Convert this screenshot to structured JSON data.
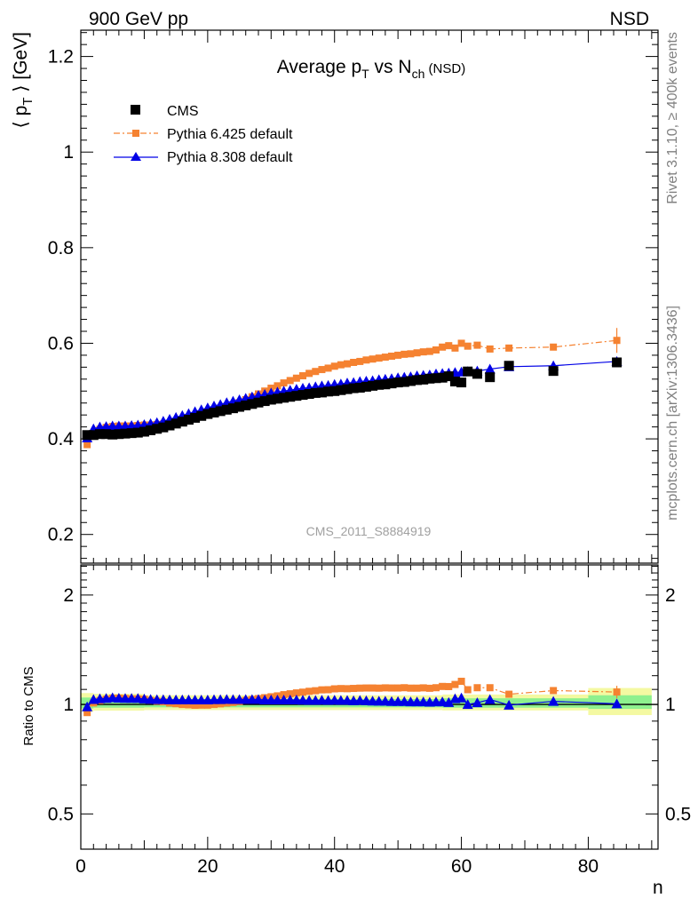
{
  "header": {
    "left": "900 GeV pp",
    "right": "NSD"
  },
  "side_text": {
    "top": "Rivet 3.1.10, ≥ 400k events",
    "bottom": "mcplots.cern.ch [arXiv:1306.3436]"
  },
  "colors": {
    "cms": "#000000",
    "pythia6": "#f58231",
    "pythia8": "#0000e6",
    "band_green": "#8ef08e",
    "band_yellow": "#f4f9a2"
  },
  "chart_data": [
    {
      "type": "scatter",
      "title": {
        "main": "Average p",
        "sub1": "T",
        "mid": " vs N",
        "sub2": "ch",
        "tail": " (NSD)"
      },
      "ylabel": {
        "pre": "⟨ p",
        "sub": "T",
        "post": " ⟩ [GeV]"
      },
      "watermark": "CMS_2011_S8884919",
      "xlim": [
        0,
        91
      ],
      "ylim": [
        0.14,
        1.255
      ],
      "yticks": [
        {
          "v": 0.2,
          "label": "0.2"
        },
        {
          "v": 0.4,
          "label": "0.4"
        },
        {
          "v": 0.6,
          "label": "0.6"
        },
        {
          "v": 0.8,
          "label": "0.8"
        },
        {
          "v": 1.0,
          "label": "1"
        },
        {
          "v": 1.2,
          "label": "1.2"
        }
      ],
      "legend_position": "top-left",
      "series": [
        {
          "name": "CMS",
          "marker": "square",
          "x": [
            1,
            2,
            3,
            4,
            5,
            6,
            7,
            8,
            9,
            10,
            11,
            12,
            13,
            14,
            15,
            16,
            17,
            18,
            19,
            20,
            21,
            22,
            23,
            24,
            25,
            26,
            27,
            28,
            29,
            30,
            31,
            32,
            33,
            34,
            35,
            36,
            37,
            38,
            39,
            40,
            41,
            42,
            43,
            44,
            45,
            46,
            47,
            48,
            49,
            50,
            51,
            52,
            53,
            54,
            55,
            56,
            57,
            58,
            59,
            60,
            61,
            62.5,
            64.5,
            67.5,
            74.5,
            84.5
          ],
          "y": [
            0.408,
            0.408,
            0.41,
            0.41,
            0.409,
            0.41,
            0.411,
            0.412,
            0.413,
            0.415,
            0.418,
            0.421,
            0.424,
            0.428,
            0.432,
            0.436,
            0.44,
            0.444,
            0.448,
            0.452,
            0.455,
            0.458,
            0.461,
            0.464,
            0.467,
            0.47,
            0.473,
            0.476,
            0.479,
            0.482,
            0.484,
            0.486,
            0.488,
            0.49,
            0.492,
            0.494,
            0.496,
            0.497,
            0.499,
            0.5,
            0.502,
            0.504,
            0.506,
            0.507,
            0.509,
            0.511,
            0.513,
            0.514,
            0.516,
            0.518,
            0.519,
            0.521,
            0.523,
            0.524,
            0.526,
            0.527,
            0.528,
            0.531,
            0.52,
            0.518,
            0.541,
            0.536,
            0.529,
            0.553,
            0.542,
            0.56
          ]
        },
        {
          "name": "Pythia 6.425 default",
          "marker": "small-square",
          "line": "dashdot",
          "x": [
            1,
            2,
            3,
            4,
            5,
            6,
            7,
            8,
            9,
            10,
            11,
            12,
            13,
            14,
            15,
            16,
            17,
            18,
            19,
            20,
            21,
            22,
            23,
            24,
            25,
            26,
            27,
            28,
            29,
            30,
            31,
            32,
            33,
            34,
            35,
            36,
            37,
            38,
            39,
            40,
            41,
            42,
            43,
            44,
            45,
            46,
            47,
            48,
            49,
            50,
            51,
            52,
            53,
            54,
            55,
            56,
            57,
            58,
            59,
            60,
            61,
            62.5,
            64.5,
            67.5,
            74.5,
            84.5
          ],
          "y": [
            0.388,
            0.412,
            0.42,
            0.424,
            0.426,
            0.427,
            0.427,
            0.427,
            0.428,
            0.429,
            0.429,
            0.43,
            0.431,
            0.432,
            0.434,
            0.436,
            0.439,
            0.442,
            0.446,
            0.45,
            0.455,
            0.46,
            0.465,
            0.47,
            0.476,
            0.482,
            0.488,
            0.494,
            0.5,
            0.506,
            0.511,
            0.517,
            0.522,
            0.527,
            0.532,
            0.537,
            0.541,
            0.545,
            0.548,
            0.552,
            0.555,
            0.557,
            0.56,
            0.562,
            0.565,
            0.567,
            0.569,
            0.571,
            0.573,
            0.575,
            0.577,
            0.578,
            0.58,
            0.582,
            0.583,
            0.586,
            0.592,
            0.595,
            0.59,
            0.6,
            0.594,
            0.596,
            0.588,
            0.59,
            0.592,
            0.606
          ]
        },
        {
          "name": "Pythia 8.308 default",
          "marker": "triangle",
          "line": "solid",
          "x": [
            1,
            2,
            3,
            4,
            5,
            6,
            7,
            8,
            9,
            10,
            11,
            12,
            13,
            14,
            15,
            16,
            17,
            18,
            19,
            20,
            21,
            22,
            23,
            24,
            25,
            26,
            27,
            28,
            29,
            30,
            31,
            32,
            33,
            34,
            35,
            36,
            37,
            38,
            39,
            40,
            41,
            42,
            43,
            44,
            45,
            46,
            47,
            48,
            49,
            50,
            51,
            52,
            53,
            54,
            55,
            56,
            57,
            58,
            59,
            60,
            61,
            62.5,
            64.5,
            67.5,
            74.5,
            84.5
          ],
          "y": [
            0.402,
            0.421,
            0.425,
            0.426,
            0.427,
            0.427,
            0.427,
            0.428,
            0.429,
            0.43,
            0.432,
            0.434,
            0.437,
            0.441,
            0.445,
            0.449,
            0.453,
            0.457,
            0.461,
            0.465,
            0.469,
            0.472,
            0.476,
            0.479,
            0.482,
            0.485,
            0.488,
            0.491,
            0.493,
            0.496,
            0.498,
            0.5,
            0.502,
            0.504,
            0.506,
            0.507,
            0.509,
            0.511,
            0.512,
            0.514,
            0.515,
            0.517,
            0.518,
            0.52,
            0.521,
            0.522,
            0.524,
            0.525,
            0.526,
            0.528,
            0.529,
            0.53,
            0.532,
            0.533,
            0.534,
            0.536,
            0.537,
            0.538,
            0.539,
            0.54,
            0.541,
            0.542,
            0.546,
            0.551,
            0.553,
            0.562
          ]
        }
      ]
    },
    {
      "type": "scatter",
      "ylabel": "Ratio to CMS",
      "xlabel": "n",
      "xlim": [
        0,
        91
      ],
      "ylim": [
        0.4,
        2.42
      ],
      "log_y": true,
      "yticks": [
        {
          "v": 0.5,
          "label": "0.5"
        },
        {
          "v": 1.0,
          "label": "1"
        },
        {
          "v": 2.0,
          "label": "2"
        }
      ],
      "xticks": [
        {
          "v": 0,
          "label": "0"
        },
        {
          "v": 20,
          "label": "20"
        },
        {
          "v": 40,
          "label": "40"
        },
        {
          "v": 60,
          "label": "60"
        },
        {
          "v": 80,
          "label": "80"
        }
      ],
      "bands": [
        {
          "kind": "yellow",
          "x": [
            0,
            2,
            10,
            28,
            57,
            80,
            90
          ],
          "lo": [
            0.955,
            0.962,
            0.965,
            0.965,
            0.963,
            0.935,
            0.935
          ],
          "hi": [
            1.075,
            1.07,
            1.06,
            1.06,
            1.065,
            1.11,
            1.11
          ]
        },
        {
          "kind": "green",
          "x": [
            0,
            2,
            10,
            28,
            57,
            80,
            90
          ],
          "lo": [
            0.975,
            0.98,
            0.982,
            0.982,
            0.98,
            0.972,
            0.972
          ],
          "hi": [
            1.045,
            1.04,
            1.035,
            1.035,
            1.04,
            1.06,
            1.06
          ]
        }
      ],
      "series": [
        {
          "name": "Pythia 6.425 default",
          "marker": "small-square",
          "line": "dashdot",
          "x": [
            1,
            2,
            3,
            4,
            5,
            6,
            7,
            8,
            9,
            10,
            11,
            12,
            13,
            14,
            15,
            16,
            17,
            18,
            19,
            20,
            21,
            22,
            23,
            24,
            25,
            26,
            27,
            28,
            29,
            30,
            31,
            32,
            33,
            34,
            35,
            36,
            37,
            38,
            39,
            40,
            41,
            42,
            43,
            44,
            45,
            46,
            47,
            48,
            49,
            50,
            51,
            52,
            53,
            54,
            55,
            56,
            57,
            58,
            59,
            60,
            61,
            62.5,
            64.5,
            67.5,
            74.5,
            84.5
          ],
          "y": [
            0.95,
            1.01,
            1.025,
            1.034,
            1.04,
            1.041,
            1.039,
            1.036,
            1.036,
            1.034,
            1.026,
            1.021,
            1.017,
            1.009,
            1.005,
            1.0,
            0.998,
            0.995,
            0.996,
            0.996,
            1.0,
            1.004,
            1.009,
            1.013,
            1.019,
            1.026,
            1.032,
            1.038,
            1.044,
            1.05,
            1.056,
            1.064,
            1.07,
            1.076,
            1.081,
            1.087,
            1.091,
            1.097,
            1.098,
            1.104,
            1.106,
            1.105,
            1.107,
            1.109,
            1.11,
            1.11,
            1.109,
            1.111,
            1.11,
            1.11,
            1.112,
            1.109,
            1.109,
            1.111,
            1.108,
            1.112,
            1.121,
            1.12,
            1.135,
            1.158,
            1.098,
            1.112,
            1.112,
            1.067,
            1.092,
            1.082
          ]
        },
        {
          "name": "Pythia 8.308 default",
          "marker": "triangle",
          "line": "solid",
          "x": [
            1,
            2,
            3,
            4,
            5,
            6,
            7,
            8,
            9,
            10,
            11,
            12,
            13,
            14,
            15,
            16,
            17,
            18,
            19,
            20,
            21,
            22,
            23,
            24,
            25,
            26,
            27,
            28,
            29,
            30,
            31,
            32,
            33,
            34,
            35,
            36,
            37,
            38,
            39,
            40,
            41,
            42,
            43,
            44,
            45,
            46,
            47,
            48,
            49,
            50,
            51,
            52,
            53,
            54,
            55,
            56,
            57,
            58,
            59,
            60,
            61,
            62.5,
            64.5,
            67.5,
            74.5,
            84.5
          ],
          "y": [
            0.985,
            1.032,
            1.037,
            1.039,
            1.044,
            1.041,
            1.039,
            1.039,
            1.039,
            1.036,
            1.033,
            1.031,
            1.031,
            1.03,
            1.03,
            1.03,
            1.03,
            1.029,
            1.029,
            1.029,
            1.031,
            1.031,
            1.033,
            1.032,
            1.032,
            1.032,
            1.032,
            1.032,
            1.029,
            1.029,
            1.029,
            1.029,
            1.029,
            1.029,
            1.028,
            1.026,
            1.026,
            1.028,
            1.026,
            1.028,
            1.026,
            1.026,
            1.024,
            1.026,
            1.024,
            1.022,
            1.021,
            1.021,
            1.019,
            1.019,
            1.019,
            1.017,
            1.017,
            1.017,
            1.015,
            1.017,
            1.017,
            1.013,
            1.037,
            1.042,
            1.0,
            1.011,
            1.032,
            0.996,
            1.02,
            1.004
          ]
        }
      ]
    }
  ]
}
